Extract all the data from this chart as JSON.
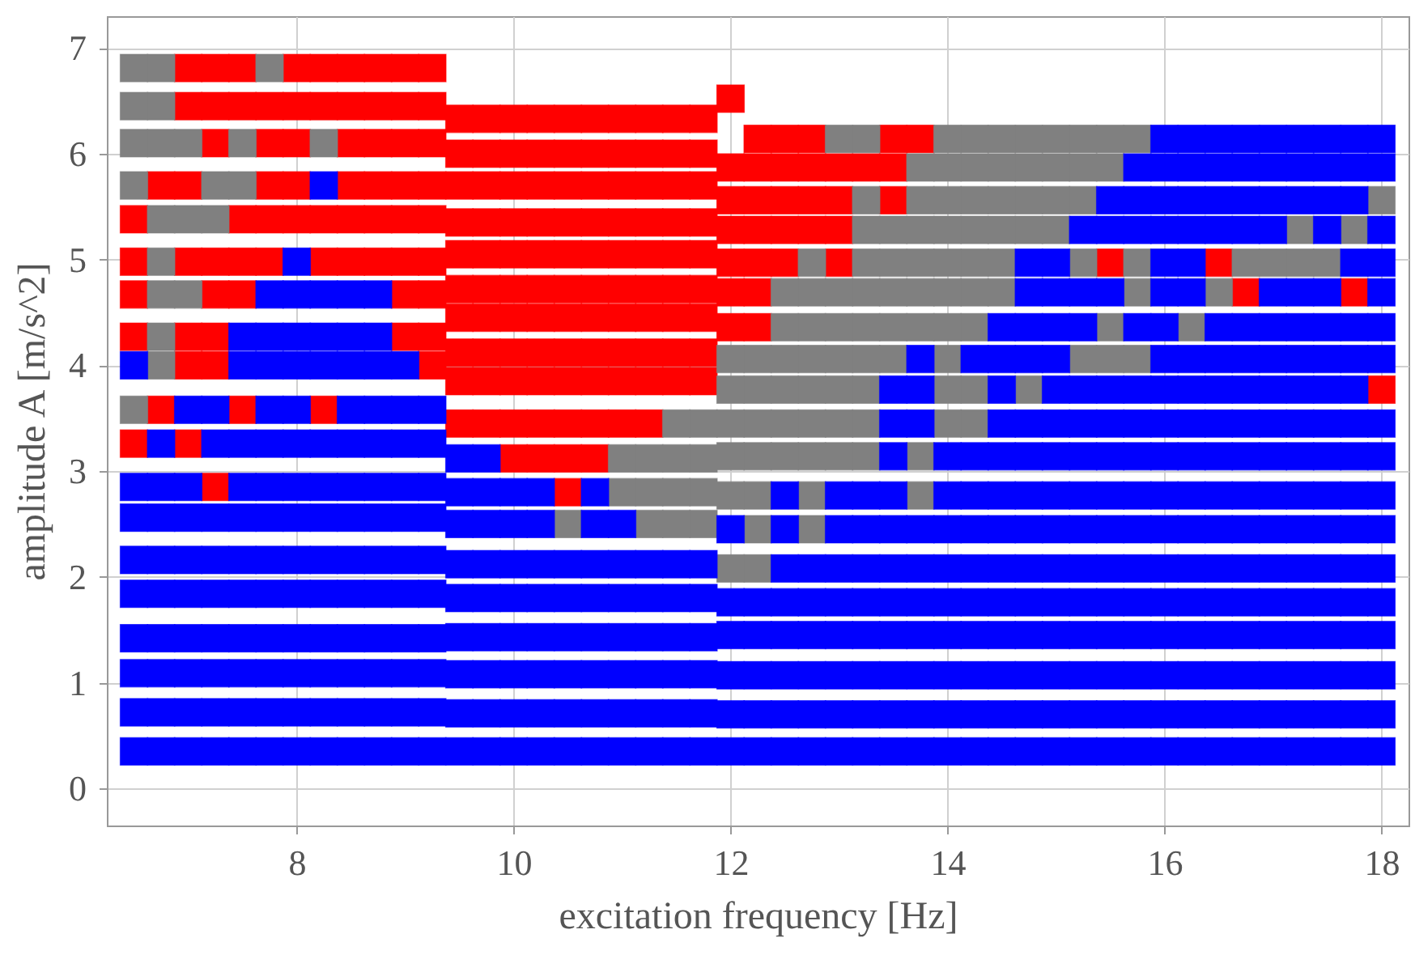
{
  "chart_data": {
    "type": "scatter",
    "xlabel": "excitation frequency [Hz]",
    "ylabel": "amplitude A [m/s^2]",
    "marker": "square",
    "grid": true,
    "xlim": [
      6.25,
      18.25
    ],
    "ylim": [
      -0.35,
      7.3
    ],
    "xticks": [
      8,
      10,
      12,
      14,
      16,
      18
    ],
    "yticks": [
      0,
      1,
      2,
      3,
      4,
      5,
      6,
      7
    ],
    "series": [
      {
        "color": "#ff0000",
        "x": [
          6.5,
          6.5,
          6.5,
          6.5,
          6.5,
          6.75,
          6.75,
          7,
          7,
          7,
          7,
          7,
          7,
          7,
          7.25,
          7.25,
          7.25,
          7.25,
          7.25,
          7.25,
          7.25,
          7.25,
          7.5,
          7.5,
          7.5,
          7.5,
          7.5,
          7.5,
          7.75,
          7.75,
          7.75,
          7.75,
          7.75,
          8,
          8,
          8,
          8,
          8,
          8.25,
          8.25,
          8.25,
          8.25,
          8.25,
          8.5,
          8.5,
          8.5,
          8.5,
          8.5,
          8.5,
          8.75,
          8.75,
          8.75,
          8.75,
          8.75,
          8.75,
          9,
          9,
          9,
          9,
          9,
          9,
          9,
          9,
          9.25,
          9.25,
          9.25,
          9.25,
          9.25,
          9.25,
          9.25,
          9.25,
          9.25,
          9.5,
          9.5,
          9.5,
          9.5,
          9.5,
          9.5,
          9.5,
          9.5,
          9.5,
          9.5,
          9.75,
          9.75,
          9.75,
          9.75,
          9.75,
          9.75,
          9.75,
          9.75,
          9.75,
          9.75,
          10,
          10,
          10,
          10,
          10,
          10,
          10,
          10,
          10,
          10,
          10,
          10.25,
          10.25,
          10.25,
          10.25,
          10.25,
          10.25,
          10.25,
          10.25,
          10.25,
          10.25,
          10.25,
          10.5,
          10.5,
          10.5,
          10.5,
          10.5,
          10.5,
          10.5,
          10.5,
          10.5,
          10.5,
          10.5,
          10.5,
          10.75,
          10.75,
          10.75,
          10.75,
          10.75,
          10.75,
          10.75,
          10.75,
          10.75,
          10.75,
          10.75,
          11,
          11,
          11,
          11,
          11,
          11,
          11,
          11,
          11,
          11,
          11.25,
          11.25,
          11.25,
          11.25,
          11.25,
          11.25,
          11.25,
          11.25,
          11.25,
          11.25,
          11.5,
          11.5,
          11.5,
          11.5,
          11.5,
          11.5,
          11.5,
          11.5,
          11.5,
          11.75,
          11.75,
          11.75,
          11.75,
          11.75,
          11.75,
          11.75,
          11.75,
          11.75,
          12,
          12,
          12,
          12,
          12,
          12,
          12,
          12.25,
          12.25,
          12.25,
          12.25,
          12.25,
          12.25,
          12.25,
          12.5,
          12.5,
          12.5,
          12.5,
          12.5,
          12.75,
          12.75,
          12.75,
          12.75,
          13,
          13,
          13,
          13,
          13.25,
          13.5,
          13.5,
          13.5,
          13.75,
          15.5,
          16.5,
          16.75,
          17.75,
          18
        ],
        "values": [
          5.38,
          4.98,
          4.67,
          4.27,
          3.26,
          5.7,
          3.58,
          6.81,
          6.45,
          5.7,
          4.98,
          4.27,
          4.0,
          3.26,
          6.81,
          6.45,
          6.1,
          4.98,
          4.67,
          4.27,
          4.0,
          2.85,
          6.81,
          6.45,
          5.38,
          4.98,
          4.67,
          3.58,
          6.45,
          6.1,
          5.7,
          5.38,
          4.98,
          6.81,
          6.45,
          6.1,
          5.7,
          5.38,
          6.81,
          6.45,
          5.38,
          4.98,
          3.58,
          6.81,
          6.45,
          6.1,
          5.7,
          5.38,
          4.98,
          6.81,
          6.45,
          6.1,
          5.7,
          5.38,
          4.98,
          6.81,
          6.45,
          6.1,
          5.7,
          5.38,
          4.98,
          4.67,
          4.27,
          6.81,
          6.45,
          6.1,
          5.7,
          5.38,
          4.98,
          4.67,
          4.27,
          4.0,
          6.33,
          6.0,
          5.7,
          5.35,
          5.05,
          4.72,
          4.45,
          4.12,
          3.85,
          3.45,
          6.33,
          6.0,
          5.7,
          5.35,
          5.05,
          4.72,
          4.45,
          4.12,
          3.85,
          3.45,
          6.33,
          6.0,
          5.7,
          5.35,
          5.05,
          4.72,
          4.45,
          4.12,
          3.85,
          3.45,
          3.12,
          6.33,
          6.0,
          5.7,
          5.35,
          5.05,
          4.72,
          4.45,
          4.12,
          3.85,
          3.45,
          3.12,
          6.33,
          6.0,
          5.7,
          5.35,
          5.05,
          4.72,
          4.45,
          4.12,
          3.85,
          3.45,
          3.12,
          2.8,
          6.33,
          6.0,
          5.7,
          5.35,
          5.05,
          4.72,
          4.45,
          4.12,
          3.85,
          3.45,
          3.12,
          6.33,
          6.0,
          5.7,
          5.35,
          5.05,
          4.72,
          4.45,
          4.12,
          3.85,
          3.45,
          6.33,
          6.0,
          5.7,
          5.35,
          5.05,
          4.72,
          4.45,
          4.12,
          3.85,
          3.45,
          6.33,
          6.0,
          5.7,
          5.35,
          5.05,
          4.72,
          4.45,
          4.12,
          3.85,
          6.33,
          6.0,
          5.7,
          5.35,
          5.05,
          4.72,
          4.45,
          4.12,
          3.85,
          6.52,
          5.87,
          5.56,
          5.28,
          4.97,
          4.69,
          4.36,
          6.14,
          5.87,
          5.56,
          5.28,
          4.97,
          4.69,
          4.36,
          6.14,
          5.87,
          5.56,
          5.28,
          4.97,
          6.14,
          5.87,
          5.56,
          5.28,
          5.87,
          5.56,
          5.28,
          4.97,
          5.87,
          6.14,
          5.87,
          5.56,
          6.14,
          4.97,
          4.97,
          4.69,
          4.69,
          3.77
        ]
      },
      {
        "color": "#808080",
        "x": [
          6.5,
          6.5,
          6.5,
          6.5,
          6.5,
          6.75,
          6.75,
          6.75,
          6.75,
          6.75,
          6.75,
          6.75,
          6.75,
          7,
          7,
          7,
          7.25,
          7.25,
          7.5,
          7.5,
          7.75,
          8.25,
          10.5,
          11,
          11,
          11.25,
          11.25,
          11.25,
          11.5,
          11.5,
          11.5,
          11.5,
          11.75,
          11.75,
          11.75,
          11.75,
          12,
          12,
          12,
          12,
          12,
          12,
          12.25,
          12.25,
          12.25,
          12.25,
          12.25,
          12.25,
          12.25,
          12.5,
          12.5,
          12.5,
          12.5,
          12.5,
          12.5,
          12.75,
          12.75,
          12.75,
          12.75,
          12.75,
          12.75,
          12.75,
          12.75,
          12.75,
          13,
          13,
          13,
          13,
          13,
          13,
          13,
          13.25,
          13.25,
          13.25,
          13.25,
          13.25,
          13.25,
          13.25,
          13.25,
          13.25,
          13.25,
          13.5,
          13.5,
          13.5,
          13.5,
          13.5,
          13.75,
          13.75,
          13.75,
          13.75,
          13.75,
          13.75,
          13.75,
          13.75,
          14,
          14,
          14,
          14,
          14,
          14,
          14,
          14,
          14,
          14,
          14.25,
          14.25,
          14.25,
          14.25,
          14.25,
          14.25,
          14.25,
          14.25,
          14.25,
          14.5,
          14.5,
          14.5,
          14.5,
          14.5,
          14.5,
          14.75,
          14.75,
          14.75,
          14.75,
          14.75,
          15,
          15,
          15,
          15,
          15.25,
          15.25,
          15.25,
          15.25,
          15.25,
          15.5,
          15.5,
          15.5,
          15.5,
          15.75,
          15.75,
          15.75,
          15.75,
          16.25,
          16.5,
          16.75,
          17,
          17.25,
          17.25,
          17.5,
          17.75,
          18
        ],
        "values": [
          6.81,
          6.45,
          6.1,
          5.7,
          3.58,
          6.81,
          6.45,
          6.1,
          5.38,
          4.98,
          4.67,
          4.27,
          4.0,
          6.1,
          5.38,
          4.67,
          5.7,
          5.38,
          6.1,
          5.7,
          6.81,
          6.1,
          2.5,
          3.12,
          2.8,
          3.12,
          2.8,
          2.5,
          3.45,
          3.12,
          2.8,
          2.5,
          3.45,
          3.12,
          2.8,
          2.5,
          4.06,
          3.77,
          3.45,
          3.14,
          2.77,
          2.08,
          4.06,
          3.77,
          3.45,
          3.14,
          2.77,
          2.45,
          2.08,
          4.69,
          4.36,
          4.06,
          3.77,
          3.45,
          3.14,
          4.97,
          4.69,
          4.36,
          4.06,
          3.77,
          3.45,
          3.14,
          2.77,
          2.45,
          6.14,
          4.69,
          4.36,
          4.06,
          3.77,
          3.45,
          3.14,
          6.14,
          5.56,
          5.28,
          4.97,
          4.69,
          4.36,
          4.06,
          3.77,
          3.45,
          3.14,
          5.28,
          4.97,
          4.69,
          4.36,
          4.06,
          5.87,
          5.56,
          5.28,
          4.97,
          4.69,
          4.36,
          3.14,
          2.77,
          6.14,
          5.87,
          5.56,
          5.28,
          4.97,
          4.69,
          4.36,
          4.06,
          3.77,
          3.45,
          6.14,
          5.87,
          5.56,
          5.28,
          4.97,
          4.69,
          4.36,
          3.77,
          3.45,
          6.14,
          5.87,
          5.56,
          5.28,
          4.97,
          4.69,
          6.14,
          5.87,
          5.56,
          5.28,
          3.77,
          6.14,
          5.87,
          5.56,
          5.28,
          6.14,
          5.87,
          5.56,
          4.97,
          4.06,
          6.14,
          5.87,
          4.36,
          4.06,
          6.14,
          4.97,
          4.69,
          4.06,
          4.36,
          4.69,
          4.97,
          4.97,
          5.28,
          4.97,
          4.97,
          5.28,
          5.56
        ]
      },
      {
        "color": "#0000ff",
        "x": [
          6.5,
          6.5,
          6.5,
          6.5,
          6.5,
          6.5,
          6.5,
          6.5,
          6.5,
          6.75,
          6.75,
          6.75,
          6.75,
          6.75,
          6.75,
          6.75,
          6.75,
          6.75,
          7,
          7,
          7,
          7,
          7,
          7,
          7,
          7,
          7,
          7.25,
          7.25,
          7.25,
          7.25,
          7.25,
          7.25,
          7.25,
          7.25,
          7.25,
          7.5,
          7.5,
          7.5,
          7.5,
          7.5,
          7.5,
          7.5,
          7.5,
          7.5,
          7.5,
          7.5,
          7.75,
          7.75,
          7.75,
          7.75,
          7.75,
          7.75,
          7.75,
          7.75,
          7.75,
          7.75,
          7.75,
          7.75,
          7.75,
          8,
          8,
          8,
          8,
          8,
          8,
          8,
          8,
          8,
          8,
          8,
          8,
          8,
          8,
          8.25,
          8.25,
          8.25,
          8.25,
          8.25,
          8.25,
          8.25,
          8.25,
          8.25,
          8.25,
          8.25,
          8.25,
          8.25,
          8.5,
          8.5,
          8.5,
          8.5,
          8.5,
          8.5,
          8.5,
          8.5,
          8.5,
          8.5,
          8.5,
          8.5,
          8.5,
          8.75,
          8.75,
          8.75,
          8.75,
          8.75,
          8.75,
          8.75,
          8.75,
          8.75,
          8.75,
          8.75,
          8.75,
          8.75,
          9,
          9,
          9,
          9,
          9,
          9,
          9,
          9,
          9,
          9,
          9,
          9.25,
          9.25,
          9.25,
          9.25,
          9.25,
          9.25,
          9.25,
          9.25,
          9.25,
          9.25,
          9.5,
          9.5,
          9.5,
          9.5,
          9.5,
          9.5,
          9.5,
          9.5,
          9.5,
          9.75,
          9.75,
          9.75,
          9.75,
          9.75,
          9.75,
          9.75,
          9.75,
          9.75,
          10,
          10,
          10,
          10,
          10,
          10,
          10,
          10,
          10.25,
          10.25,
          10.25,
          10.25,
          10.25,
          10.25,
          10.25,
          10.25,
          10.5,
          10.5,
          10.5,
          10.5,
          10.5,
          10.5,
          10.75,
          10.75,
          10.75,
          10.75,
          10.75,
          10.75,
          10.75,
          10.75,
          11,
          11,
          11,
          11,
          11,
          11,
          11,
          11.25,
          11.25,
          11.25,
          11.25,
          11.25,
          11.25,
          11.5,
          11.5,
          11.5,
          11.5,
          11.5,
          11.5,
          11.75,
          11.75,
          11.75,
          11.75,
          11.75,
          11.75,
          12,
          12,
          12,
          12,
          12,
          12,
          12.25,
          12.25,
          12.25,
          12.25,
          12.25,
          12.5,
          12.5,
          12.5,
          12.5,
          12.5,
          12.5,
          12.5,
          12.5,
          12.75,
          12.75,
          12.75,
          12.75,
          12.75,
          12.75,
          13,
          13,
          13,
          13,
          13,
          13,
          13,
          13,
          13.25,
          13.25,
          13.25,
          13.25,
          13.25,
          13.25,
          13.25,
          13.25,
          13.5,
          13.5,
          13.5,
          13.5,
          13.5,
          13.5,
          13.5,
          13.5,
          13.5,
          13.5,
          13.5,
          13.75,
          13.75,
          13.75,
          13.75,
          13.75,
          13.75,
          13.75,
          13.75,
          13.75,
          13.75,
          14,
          14,
          14,
          14,
          14,
          14,
          14,
          14,
          14,
          14.25,
          14.25,
          14.25,
          14.25,
          14.25,
          14.25,
          14.25,
          14.25,
          14.25,
          14.25,
          14.5,
          14.5,
          14.5,
          14.5,
          14.5,
          14.5,
          14.5,
          14.5,
          14.5,
          14.5,
          14.5,
          14.5,
          14.5,
          14.75,
          14.75,
          14.75,
          14.75,
          14.75,
          14.75,
          14.75,
          14.75,
          14.75,
          14.75,
          14.75,
          14.75,
          14.75,
          14.75,
          15,
          15,
          15,
          15,
          15,
          15,
          15,
          15,
          15,
          15,
          15,
          15,
          15,
          15,
          15,
          15.25,
          15.25,
          15.25,
          15.25,
          15.25,
          15.25,
          15.25,
          15.25,
          15.25,
          15.25,
          15.25,
          15.25,
          15.25,
          15.25,
          15.5,
          15.5,
          15.5,
          15.5,
          15.5,
          15.5,
          15.5,
          15.5,
          15.5,
          15.5,
          15.5,
          15.5,
          15.5,
          15.5,
          15.75,
          15.75,
          15.75,
          15.75,
          15.75,
          15.75,
          15.75,
          15.75,
          15.75,
          15.75,
          15.75,
          15.75,
          15.75,
          15.75,
          15.75,
          16,
          16,
          16,
          16,
          16,
          16,
          16,
          16,
          16,
          16,
          16,
          16,
          16,
          16,
          16,
          16,
          16,
          16,
          16,
          16.25,
          16.25,
          16.25,
          16.25,
          16.25,
          16.25,
          16.25,
          16.25,
          16.25,
          16.25,
          16.25,
          16.25,
          16.25,
          16.25,
          16.25,
          16.25,
          16.25,
          16.25,
          16.5,
          16.5,
          16.5,
          16.5,
          16.5,
          16.5,
          16.5,
          16.5,
          16.5,
          16.5,
          16.5,
          16.5,
          16.5,
          16.5,
          16.5,
          16.5,
          16.5,
          16.75,
          16.75,
          16.75,
          16.75,
          16.75,
          16.75,
          16.75,
          16.75,
          16.75,
          16.75,
          16.75,
          16.75,
          16.75,
          16.75,
          16.75,
          16.75,
          16.75,
          17,
          17,
          17,
          17,
          17,
          17,
          17,
          17,
          17,
          17,
          17,
          17,
          17,
          17,
          17,
          17,
          17,
          17,
          17.25,
          17.25,
          17.25,
          17.25,
          17.25,
          17.25,
          17.25,
          17.25,
          17.25,
          17.25,
          17.25,
          17.25,
          17.25,
          17.25,
          17.25,
          17.25,
          17.25,
          17.5,
          17.5,
          17.5,
          17.5,
          17.5,
          17.5,
          17.5,
          17.5,
          17.5,
          17.5,
          17.5,
          17.5,
          17.5,
          17.5,
          17.5,
          17.5,
          17.5,
          17.5,
          17.75,
          17.75,
          17.75,
          17.75,
          17.75,
          17.75,
          17.75,
          17.75,
          17.75,
          17.75,
          17.75,
          17.75,
          17.75,
          17.75,
          17.75,
          17.75,
          17.75,
          18,
          18,
          18,
          18,
          18,
          18,
          18,
          18,
          18,
          18,
          18,
          18,
          18,
          18,
          18,
          18,
          18
        ],
        "values": [
          4.0,
          2.85,
          2.56,
          2.16,
          1.84,
          1.42,
          1.09,
          0.72,
          0.35,
          3.26,
          2.85,
          2.56,
          2.16,
          1.84,
          1.42,
          1.09,
          0.72,
          0.35,
          3.58,
          2.85,
          2.56,
          2.16,
          1.84,
          1.42,
          1.09,
          0.72,
          0.35,
          3.58,
          3.26,
          2.56,
          2.16,
          1.84,
          1.42,
          1.09,
          0.72,
          0.35,
          4.27,
          4.0,
          3.26,
          2.85,
          2.56,
          2.16,
          1.84,
          1.42,
          1.09,
          0.72,
          0.35,
          4.67,
          4.27,
          4.0,
          3.58,
          3.26,
          2.85,
          2.56,
          2.16,
          1.84,
          1.42,
          1.09,
          0.72,
          0.35,
          4.98,
          4.67,
          4.27,
          4.0,
          3.58,
          3.26,
          2.85,
          2.56,
          2.16,
          1.84,
          1.42,
          1.09,
          0.72,
          0.35,
          5.7,
          4.67,
          4.27,
          4.0,
          3.26,
          2.85,
          2.56,
          2.16,
          1.84,
          1.42,
          1.09,
          0.72,
          0.35,
          4.67,
          4.27,
          4.0,
          3.58,
          3.26,
          2.85,
          2.56,
          2.16,
          1.84,
          1.42,
          1.09,
          0.72,
          0.35,
          4.67,
          4.27,
          4.0,
          3.58,
          3.26,
          2.85,
          2.56,
          2.16,
          1.84,
          1.42,
          1.09,
          0.72,
          0.35,
          4.0,
          3.58,
          3.26,
          2.85,
          2.56,
          2.16,
          1.84,
          1.42,
          1.09,
          0.72,
          0.35,
          3.58,
          3.26,
          2.85,
          2.56,
          2.16,
          1.84,
          1.42,
          1.09,
          0.72,
          0.35,
          3.12,
          2.8,
          2.5,
          2.12,
          1.8,
          1.43,
          1.08,
          0.71,
          0.35,
          3.12,
          2.8,
          2.5,
          2.12,
          1.8,
          1.43,
          1.08,
          0.71,
          0.35,
          2.8,
          2.5,
          2.12,
          1.8,
          1.43,
          1.08,
          0.71,
          0.35,
          2.8,
          2.5,
          2.12,
          1.8,
          1.43,
          1.08,
          0.71,
          0.35,
          2.12,
          1.8,
          1.43,
          1.08,
          0.71,
          0.35,
          2.8,
          2.5,
          2.12,
          1.8,
          1.43,
          1.08,
          0.71,
          0.35,
          2.5,
          2.12,
          1.8,
          1.43,
          1.08,
          0.71,
          0.35,
          2.12,
          1.8,
          1.43,
          1.08,
          0.71,
          0.35,
          2.12,
          1.8,
          1.43,
          1.08,
          0.71,
          0.35,
          2.12,
          1.8,
          1.43,
          1.08,
          0.71,
          0.35,
          2.45,
          1.76,
          1.45,
          1.07,
          0.7,
          0.35,
          1.76,
          1.45,
          1.07,
          0.7,
          0.35,
          2.77,
          2.45,
          2.08,
          1.76,
          1.45,
          1.07,
          0.7,
          0.35,
          2.08,
          1.76,
          1.45,
          1.07,
          0.7,
          0.35,
          2.77,
          2.45,
          2.08,
          1.76,
          1.45,
          1.07,
          0.7,
          0.35,
          2.77,
          2.45,
          2.08,
          1.76,
          1.45,
          1.07,
          0.7,
          0.35,
          3.77,
          3.45,
          3.14,
          2.77,
          2.45,
          2.08,
          1.76,
          1.45,
          1.07,
          0.7,
          0.35,
          4.06,
          3.77,
          3.45,
          2.45,
          2.08,
          1.76,
          1.45,
          1.07,
          0.7,
          0.35,
          3.14,
          2.77,
          2.45,
          2.08,
          1.76,
          1.45,
          1.07,
          0.7,
          0.35,
          4.06,
          3.14,
          2.77,
          2.45,
          2.08,
          1.76,
          1.45,
          1.07,
          0.7,
          0.35,
          4.36,
          4.06,
          3.77,
          3.45,
          3.14,
          2.77,
          2.45,
          2.08,
          1.76,
          1.45,
          1.07,
          0.7,
          0.35,
          4.97,
          4.69,
          4.36,
          4.06,
          3.45,
          3.14,
          2.77,
          2.45,
          2.08,
          1.76,
          1.45,
          1.07,
          0.7,
          0.35,
          4.97,
          4.69,
          4.36,
          4.06,
          3.77,
          3.45,
          3.14,
          2.77,
          2.45,
          2.08,
          1.76,
          1.45,
          1.07,
          0.7,
          0.35,
          5.28,
          4.69,
          4.36,
          3.77,
          3.45,
          3.14,
          2.77,
          2.45,
          2.08,
          1.76,
          1.45,
          1.07,
          0.7,
          0.35,
          5.56,
          5.28,
          4.69,
          3.77,
          3.45,
          3.14,
          2.77,
          2.45,
          2.08,
          1.76,
          1.45,
          1.07,
          0.7,
          0.35,
          5.87,
          5.56,
          5.28,
          4.36,
          3.77,
          3.45,
          3.14,
          2.77,
          2.45,
          2.08,
          1.76,
          1.45,
          1.07,
          0.7,
          0.35,
          6.14,
          5.87,
          5.56,
          5.28,
          4.97,
          4.69,
          4.36,
          4.06,
          3.77,
          3.45,
          3.14,
          2.77,
          2.45,
          2.08,
          1.76,
          1.45,
          1.07,
          0.7,
          0.35,
          6.14,
          5.87,
          5.56,
          5.28,
          4.97,
          4.69,
          4.06,
          3.77,
          3.45,
          3.14,
          2.77,
          2.45,
          2.08,
          1.76,
          1.45,
          1.07,
          0.7,
          0.35,
          6.14,
          5.87,
          5.56,
          5.28,
          4.36,
          4.06,
          3.77,
          3.45,
          3.14,
          2.77,
          2.45,
          2.08,
          1.76,
          1.45,
          1.07,
          0.7,
          0.35,
          6.14,
          5.87,
          5.56,
          5.28,
          4.36,
          4.06,
          3.77,
          3.45,
          3.14,
          2.77,
          2.45,
          2.08,
          1.76,
          1.45,
          1.07,
          0.7,
          0.35,
          6.14,
          5.87,
          5.56,
          5.28,
          4.69,
          4.36,
          4.06,
          3.77,
          3.45,
          3.14,
          2.77,
          2.45,
          2.08,
          1.76,
          1.45,
          1.07,
          0.7,
          0.35,
          6.14,
          5.87,
          5.56,
          4.69,
          4.36,
          4.06,
          3.77,
          3.45,
          3.14,
          2.77,
          2.45,
          2.08,
          1.76,
          1.45,
          1.07,
          0.7,
          0.35,
          6.14,
          5.87,
          5.56,
          5.28,
          4.69,
          4.36,
          4.06,
          3.77,
          3.45,
          3.14,
          2.77,
          2.45,
          2.08,
          1.76,
          1.45,
          1.07,
          0.7,
          0.35,
          6.14,
          5.87,
          5.56,
          4.97,
          4.36,
          4.06,
          3.77,
          3.45,
          3.14,
          2.77,
          2.45,
          2.08,
          1.76,
          1.45,
          1.07,
          0.7,
          0.35,
          6.14,
          5.87,
          5.28,
          4.97,
          4.69,
          4.36,
          4.06,
          3.45,
          3.14,
          2.77,
          2.45,
          2.08,
          1.76,
          1.45,
          1.07,
          0.7,
          0.35
        ]
      }
    ]
  }
}
